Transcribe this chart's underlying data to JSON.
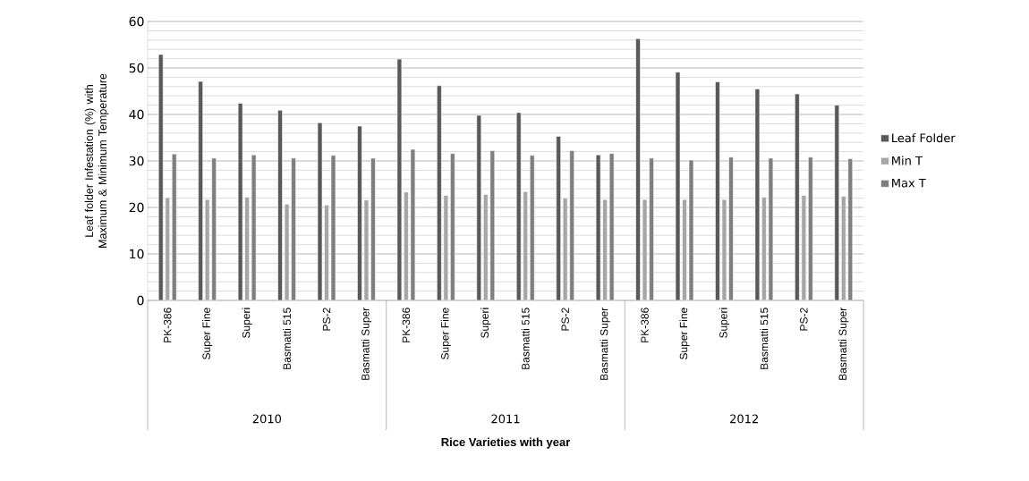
{
  "chart_data": {
    "type": "bar",
    "xlabel": "Rice Varieties with year",
    "ylabel": "Leaf folder Infestation (%) with Maximum & Minimum Temperature",
    "categories": [
      "PK-386",
      "Super Fine",
      "Superi",
      "Basmatti 515",
      "PS-2",
      "Basmatti Super",
      "PK-386",
      "Super Fine",
      "Superi",
      "Basmatti 515",
      "PS-2",
      "Basmatti Super",
      "PK-386",
      "Super Fine",
      "Superi",
      "Basmatti 515",
      "PS-2",
      "Basmatti Super"
    ],
    "series": [
      {
        "name": "Leaf Folder",
        "color": "#595959",
        "values": [
          52.9,
          47.1,
          42.4,
          40.9,
          38.2,
          37.5,
          51.9,
          46.2,
          39.8,
          40.4,
          35.3,
          31.3,
          56.3,
          49.1,
          47.0,
          45.5,
          44.4,
          42.0
        ]
      },
      {
        "name": "Min T",
        "color": "#a6a6a6",
        "values": [
          22.1,
          21.7,
          22.2,
          20.7,
          20.5,
          21.6,
          23.3,
          22.6,
          22.8,
          23.4,
          22.0,
          21.7,
          21.7,
          21.7,
          21.7,
          22.2,
          22.6,
          22.4
        ]
      },
      {
        "name": "Max T",
        "color": "#7f7f7f",
        "values": [
          31.5,
          30.6,
          31.3,
          30.6,
          31.2,
          30.6,
          32.5,
          31.6,
          32.2,
          31.2,
          32.2,
          31.6,
          30.6,
          30.2,
          30.8,
          30.6,
          30.8,
          30.5
        ]
      }
    ],
    "annotations": [
      "2010",
      "2011",
      "2012"
    ],
    "ylim": [
      0,
      60
    ],
    "yticks": [
      0,
      10,
      20,
      30,
      40,
      50,
      60
    ],
    "grid": "y",
    "legend": "right"
  }
}
